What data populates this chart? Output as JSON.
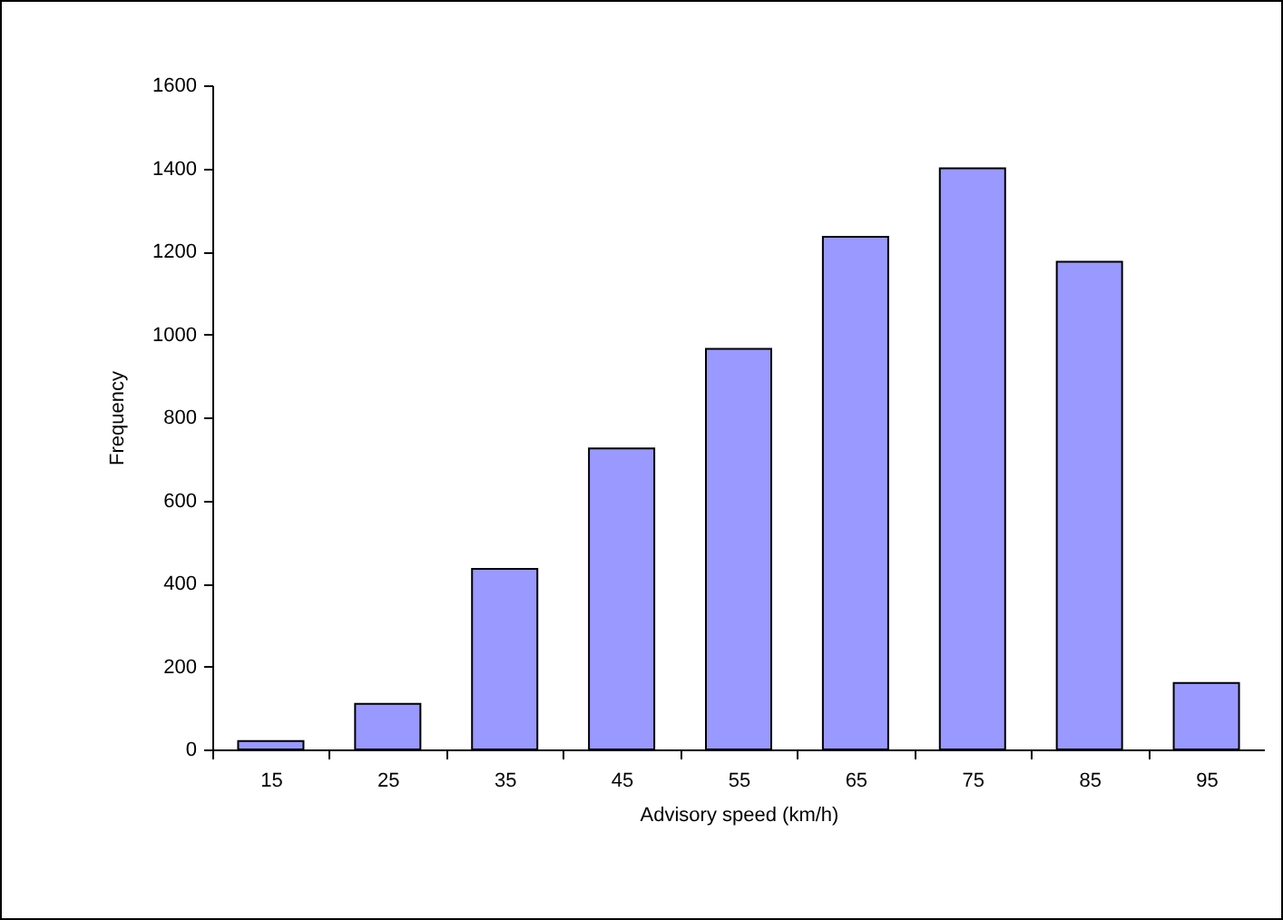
{
  "chart_data": {
    "type": "bar",
    "xlabel": "Advisory speed (km/h)",
    "ylabel": "Frequency",
    "categories": [
      "15",
      "25",
      "35",
      "45",
      "55",
      "65",
      "75",
      "85",
      "95"
    ],
    "values": [
      20,
      110,
      435,
      725,
      965,
      1235,
      1400,
      1175,
      160
    ],
    "color": "#9999ff",
    "ylim": [
      0,
      1600
    ],
    "yticks": [
      0,
      200,
      400,
      600,
      800,
      1000,
      1200,
      1400,
      1600
    ],
    "grid": false
  }
}
